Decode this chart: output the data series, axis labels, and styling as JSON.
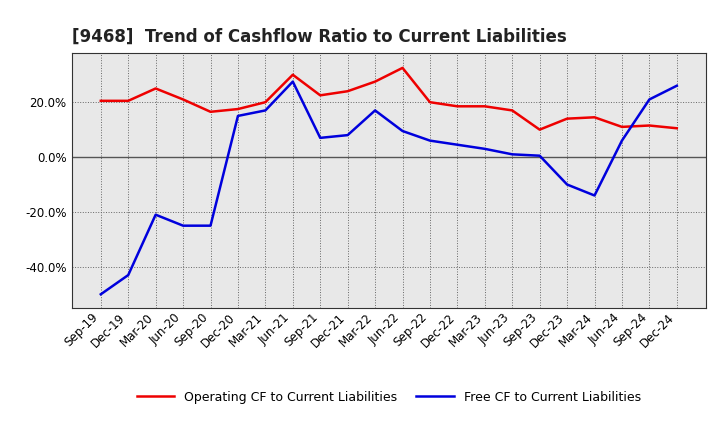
{
  "title": "[9468]  Trend of Cashflow Ratio to Current Liabilities",
  "x_labels": [
    "Sep-19",
    "Dec-19",
    "Mar-20",
    "Jun-20",
    "Sep-20",
    "Dec-20",
    "Mar-21",
    "Jun-21",
    "Sep-21",
    "Dec-21",
    "Mar-22",
    "Jun-22",
    "Sep-22",
    "Dec-22",
    "Mar-23",
    "Jun-23",
    "Sep-23",
    "Dec-23",
    "Mar-24",
    "Jun-24",
    "Sep-24",
    "Dec-24"
  ],
  "operating_cf": [
    20.5,
    20.5,
    25.0,
    21.0,
    16.5,
    17.5,
    20.0,
    30.0,
    22.5,
    24.0,
    27.5,
    32.5,
    20.0,
    18.5,
    18.5,
    17.0,
    10.0,
    14.0,
    14.5,
    11.0,
    11.5,
    10.5
  ],
  "free_cf": [
    -50.0,
    -43.0,
    -21.0,
    -25.0,
    -25.0,
    15.0,
    17.0,
    27.5,
    7.0,
    8.0,
    17.0,
    9.5,
    6.0,
    4.5,
    3.0,
    1.0,
    0.5,
    -10.0,
    -14.0,
    6.0,
    21.0,
    26.0
  ],
  "operating_color": "#ee0000",
  "free_color": "#0000dd",
  "ylim": [
    -55,
    38
  ],
  "yticks": [
    -40.0,
    -20.0,
    0.0,
    20.0
  ],
  "background_color": "#ffffff",
  "plot_bg_color": "#e8e8e8",
  "grid_color": "#666666",
  "legend_op": "Operating CF to Current Liabilities",
  "legend_free": "Free CF to Current Liabilities",
  "title_fontsize": 12,
  "tick_fontsize": 8.5
}
